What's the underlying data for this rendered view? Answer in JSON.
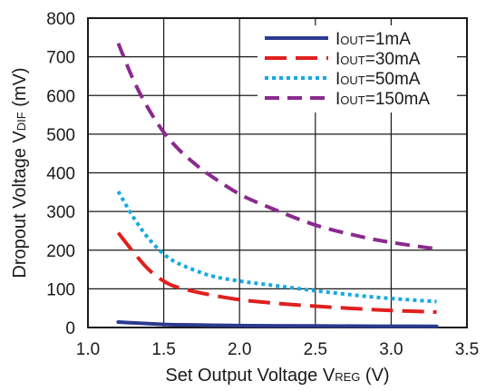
{
  "chart_data": {
    "type": "line",
    "xlabel_main": "Set Output Voltage V",
    "xlabel_sub": "REG",
    "xlabel_unit": " (V)",
    "ylabel_main": "Dropout Voltage V",
    "ylabel_sub": "DIF",
    "ylabel_unit": " (mV)",
    "xlim": [
      1.0,
      3.5
    ],
    "ylim": [
      0,
      800
    ],
    "x_ticks": [
      "1.0",
      "1.5",
      "2.0",
      "2.5",
      "3.0",
      "3.5"
    ],
    "y_ticks": [
      "0",
      "100",
      "200",
      "300",
      "400",
      "500",
      "600",
      "700",
      "800"
    ],
    "grid": true,
    "legend_position": "top-right",
    "series": [
      {
        "name_prefix": "I",
        "name_sub": "OUT",
        "name_suffix": "=1mA",
        "color": "#2b3a8f",
        "dash": "solid",
        "x": [
          1.2,
          1.3,
          1.4,
          1.5,
          1.6,
          1.8,
          2.0,
          2.2,
          2.5,
          2.8,
          3.0,
          3.3
        ],
        "y": [
          14,
          12,
          10,
          8,
          7,
          6,
          5,
          4.5,
          4,
          3.5,
          3.2,
          3
        ]
      },
      {
        "name_prefix": "I",
        "name_sub": "OUT",
        "name_suffix": "=30mA",
        "color": "#e0201e",
        "dash": "longdash",
        "x": [
          1.2,
          1.3,
          1.4,
          1.5,
          1.6,
          1.8,
          2.0,
          2.2,
          2.5,
          2.8,
          3.0,
          3.3
        ],
        "y": [
          245,
          195,
          150,
          120,
          103,
          85,
          72,
          64,
          55,
          48,
          44,
          40
        ]
      },
      {
        "name_prefix": "I",
        "name_sub": "OUT",
        "name_suffix": "=50mA",
        "color": "#17a9e0",
        "dash": "dotted",
        "x": [
          1.2,
          1.3,
          1.4,
          1.5,
          1.6,
          1.8,
          2.0,
          2.2,
          2.5,
          2.8,
          3.0,
          3.3
        ],
        "y": [
          352,
          285,
          230,
          190,
          165,
          135,
          120,
          110,
          95,
          82,
          75,
          67
        ]
      },
      {
        "name_prefix": "I",
        "name_sub": "OUT",
        "name_suffix": "=150mA",
        "color": "#8b2a8e",
        "dash": "dashed",
        "x": [
          1.2,
          1.3,
          1.4,
          1.5,
          1.6,
          1.7,
          1.8,
          2.0,
          2.2,
          2.5,
          2.8,
          3.0,
          3.3
        ],
        "y": [
          735,
          640,
          565,
          505,
          460,
          425,
          395,
          345,
          310,
          265,
          235,
          220,
          203
        ]
      }
    ]
  }
}
